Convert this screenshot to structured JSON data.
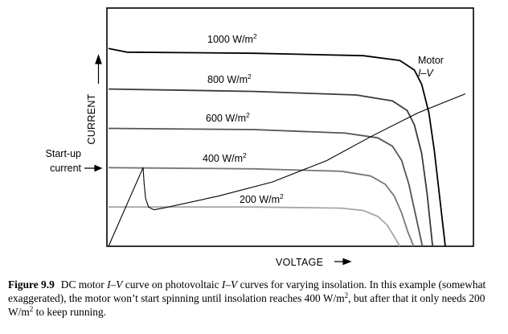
{
  "chart_data": {
    "type": "line",
    "xlabel": "VOLTAGE",
    "ylabel": "CURRENT",
    "xlim": [
      0,
      100
    ],
    "ylim": [
      0,
      100
    ],
    "series": [
      {
        "name": "1000 W/m",
        "sup": "2",
        "color": "#000000",
        "x": [
          0,
          5,
          40,
          70,
          80,
          84,
          86,
          88,
          89.5,
          91,
          92.5
        ],
        "y": [
          83,
          81.5,
          81,
          80,
          78,
          74,
          68,
          56,
          40,
          20,
          0
        ]
      },
      {
        "name": "800 W/m",
        "sup": "2",
        "color": "#3a3a3a",
        "x": [
          0,
          40,
          68,
          78,
          82,
          84,
          86,
          87.5,
          89
        ],
        "y": [
          66,
          65,
          63.5,
          61,
          57,
          51,
          39,
          22,
          0
        ]
      },
      {
        "name": "600 W/m",
        "sup": "2",
        "color": "#545454",
        "x": [
          0,
          40,
          65,
          74,
          78,
          80.5,
          82.5,
          84.5,
          86.2
        ],
        "y": [
          49.5,
          49,
          47.5,
          45.5,
          42,
          36,
          26,
          12,
          0
        ]
      },
      {
        "name": "400 W/m",
        "sup": "2",
        "color": "#777777",
        "x": [
          0,
          40,
          64,
          72,
          76,
          78.5,
          80.5,
          82.2,
          83.8
        ],
        "y": [
          33,
          32.5,
          31.5,
          29.5,
          26,
          21,
          14,
          6,
          0
        ]
      },
      {
        "name": "200 W/m",
        "sup": "2",
        "color": "#a6a6a6",
        "x": [
          0,
          40,
          64,
          70,
          74,
          76.5,
          78.5,
          80
        ],
        "y": [
          16.5,
          16.5,
          16,
          15,
          12.5,
          9,
          4,
          0
        ]
      }
    ],
    "motor": {
      "label_line1": "Motor",
      "label_line2": "I–V",
      "x": [
        0,
        9.5,
        9.8,
        10.2,
        11,
        12.5,
        15,
        30,
        45,
        60,
        72,
        85,
        98
      ],
      "y": [
        0,
        33,
        26,
        20,
        16.5,
        15.3,
        16,
        21,
        27,
        36,
        46,
        56,
        64
      ]
    },
    "startup_label_line1": "Start-up",
    "startup_label_line2": "current",
    "startup_current": 33
  },
  "caption": {
    "figure_number": "Figure 9.9",
    "p1": "DC motor ",
    "iv1": "I–V",
    "p2": " curve on photovoltaic ",
    "iv2": "I–V",
    "p3": " curves for varying insolation. In this example (somewhat exaggerated), the motor won’t start spinning until insolation reaches 400 W/m",
    "sup1": "2",
    "p4": ", but after that it only needs 200 W/m",
    "sup2": "2",
    "p5": " to keep running."
  }
}
